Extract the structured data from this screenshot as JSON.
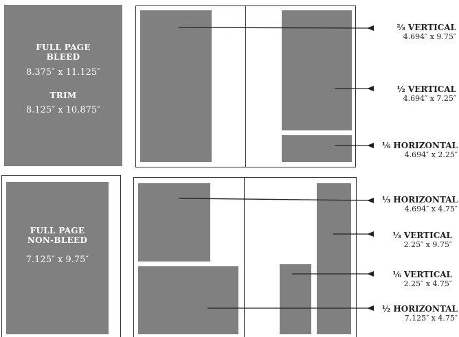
{
  "full_page_bleed": {
    "title": "FULL PAGE\nBLEED",
    "bleed_size": "8.375″ x 11.125″",
    "trim_label": "TRIM",
    "trim_size": "8.125″ x 10.875″"
  },
  "full_page_non_bleed": {
    "title": "FULL PAGE\nNON-BLEED",
    "size": "7.125″ x 9.75″"
  },
  "ad_sizes": [
    {
      "name": "⅔ VERTICAL",
      "size": "4.694″ x 9.75″"
    },
    {
      "name": "½ VERTICAL",
      "size": "4.694″ x 7.25″"
    },
    {
      "name": "⅙ HORIZONTAL",
      "size": "4.694″ x 2.25″"
    },
    {
      "name": "⅓ HORIZONTAL",
      "size": "4.694″ x 4.75″"
    },
    {
      "name": "⅓ VERTICAL",
      "size": "2.25″ x 9.75″"
    },
    {
      "name": "⅙ VERTICAL",
      "size": "2.25″ x 4.75″"
    },
    {
      "name": "½ HORIZONTAL",
      "size": "7.125″ x 4.75″"
    }
  ],
  "colors": {
    "block": "#808080",
    "line": "#333333",
    "text": "#222222"
  }
}
